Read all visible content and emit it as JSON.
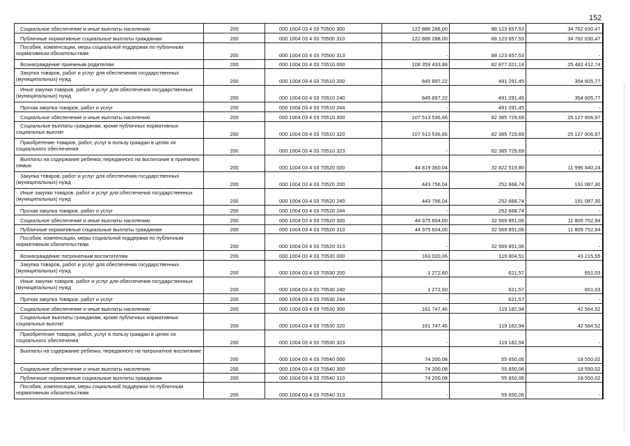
{
  "page_number": "152",
  "rows": [
    {
      "name": "Социальное обеспечение и иные выплаты населению",
      "code": "200",
      "kbk": "000 1004 03 4 03 70500 300",
      "approved": "122 886 288,00",
      "executed": "88 123 657,53",
      "remaining": "34 762 630,47"
    },
    {
      "name": "Публичные нормативные социальные выплаты гражданам",
      "code": "200",
      "kbk": "000 1004 03 4 03 70500 310",
      "approved": "122 886 288,00",
      "executed": "88 123 657,53",
      "remaining": "34 762 630,47"
    },
    {
      "name": "Пособия, компенсации, меры социальной поддержки по публичным нормативным обязательствам",
      "code": "200",
      "kbk": "000 1004 03 4 03 70500 313",
      "approved": "-",
      "executed": "88 123 657,53",
      "remaining": "-"
    },
    {
      "name": "Вознаграждение приемным родителям",
      "code": "200",
      "kbk": "000 1004 03 4 03 70510 000",
      "approved": "108 359 433,88",
      "executed": "82 877 021,14",
      "remaining": "25 482 412,74"
    },
    {
      "name": "Закупка товаров, работ и услуг для обеспечения государственных (муниципальных) нужд",
      "code": "200",
      "kbk": "000 1004 03 4 03 70510 200",
      "approved": "845 897,22",
      "executed": "491 291,45",
      "remaining": "354 605,77"
    },
    {
      "name": "Иные закупки товаров, работ и услуг для обеспечения государственных (муниципальных) нужд",
      "code": "200",
      "kbk": "000 1004 03 4 03 70510 240",
      "approved": "845 897,22",
      "executed": "491 291,45",
      "remaining": "354 605,77"
    },
    {
      "name": "Прочая закупка товаров, работ и услуг",
      "code": "200",
      "kbk": "000 1004 03 4 03 70510 244",
      "approved": "-",
      "executed": "491 291,45",
      "remaining": "-"
    },
    {
      "name": "Социальное обеспечение и иные выплаты населению",
      "code": "200",
      "kbk": "000 1004 03 4 03 70510 300",
      "approved": "107 513 536,66",
      "executed": "82 385 729,69",
      "remaining": "25 127 806,97"
    },
    {
      "name": "Социальные выплаты гражданам, кроме публичных нормативных социальных выплат",
      "code": "200",
      "kbk": "000 1004 03 4 03 70510 320",
      "approved": "107 513 536,66",
      "executed": "82 385 729,69",
      "remaining": "25 127 806,97"
    },
    {
      "name": "Приобретение товаров, работ, услуг в пользу граждан в целях их социального обеспечения",
      "code": "200",
      "kbk": "000 1004 03 4 03 70510 323",
      "approved": "-",
      "executed": "82 385 729,69",
      "remaining": "-"
    },
    {
      "name": "Выплаты на содержание ребенка, переданного на воспитание в приемную семью",
      "code": "200",
      "kbk": "000 1004 03 4 03 70520 000",
      "approved": "44 819 360,04",
      "executed": "32 822 519,80",
      "remaining": "11 996 840,24"
    },
    {
      "name": "Закупка товаров, работ и услуг для обеспечения государственных (муниципальных) нужд",
      "code": "200",
      "kbk": "000 1004 03 4 03 70520 200",
      "approved": "443 756,04",
      "executed": "252 668,74",
      "remaining": "191 087,30"
    },
    {
      "name": "Иные закупки товаров, работ и услуг для обеспечения государственных (муниципальных) нужд",
      "code": "200",
      "kbk": "000 1004 03 4 03 70520 240",
      "approved": "443 756,04",
      "executed": "252 668,74",
      "remaining": "191 087,30"
    },
    {
      "name": "Прочая закупка товаров, работ и услуг",
      "code": "200",
      "kbk": "000 1004 03 4 03 70520 244",
      "approved": "-",
      "executed": "252 668,74",
      "remaining": "-"
    },
    {
      "name": "Социальное обеспечение и иные выплаты населению",
      "code": "200",
      "kbk": "000 1004 03 4 03 70520 300",
      "approved": "44 375 604,00",
      "executed": "32 569 851,06",
      "remaining": "11 805 752,94"
    },
    {
      "name": "Публичные нормативные социальные выплаты гражданам",
      "code": "200",
      "kbk": "000 1004 03 4 03 70520 310",
      "approved": "44 375 604,00",
      "executed": "32 569 851,06",
      "remaining": "11 805 752,94"
    },
    {
      "name": "Пособия, компенсации, меры социальной поддержки по публичным нормативным обязательствам",
      "code": "200",
      "kbk": "000 1004 03 4 03 70520 313",
      "approved": "-",
      "executed": "32 569 851,06",
      "remaining": "-"
    },
    {
      "name": "Вознаграждение патронатным воспитателям",
      "code": "200",
      "kbk": "000 1004 03 4 03 70530 000",
      "approved": "163 020,06",
      "executed": "119 804,51",
      "remaining": "43 215,55"
    },
    {
      "name": "Закупка товаров, работ и услуг для обеспечения государственных (муниципальных) нужд",
      "code": "200",
      "kbk": "000 1004 03 4 03 70530 200",
      "approved": "1 272,60",
      "executed": "621,57",
      "remaining": "651,03"
    },
    {
      "name": "Иные закупки товаров, работ и услуг для обеспечения государственных (муниципальных) нужд",
      "code": "200",
      "kbk": "000 1004 03 4 03 70530 240",
      "approved": "1 272,60",
      "executed": "621,57",
      "remaining": "651,03"
    },
    {
      "name": "Прочая закупка товаров, работ и услуг",
      "code": "200",
      "kbk": "000 1004 03 4 03 70530 244",
      "approved": "-",
      "executed": "621,57",
      "remaining": "-"
    },
    {
      "name": "Социальное обеспечение и иные выплаты населению",
      "code": "200",
      "kbk": "000 1004 03 4 03 70530 300",
      "approved": "161 747,46",
      "executed": "119 182,94",
      "remaining": "42 564,52"
    },
    {
      "name": "Социальные выплаты гражданам, кроме публичных нормативных социальных выплат",
      "code": "200",
      "kbk": "000 1004 03 4 03 70530 320",
      "approved": "161 747,46",
      "executed": "119 182,94",
      "remaining": "42 564,52"
    },
    {
      "name": "Приобретение товаров, работ, услуг в пользу граждан в целях их социального обеспечения",
      "code": "200",
      "kbk": "000 1004 03 4 03 70530 323",
      "approved": "-",
      "executed": "119 182,94",
      "remaining": "-"
    },
    {
      "name": "Выплаты на содержание ребенка, переданного на патронатное воспитание",
      "code": "200",
      "kbk": "000 1004 03 4 03 70540 000",
      "approved": "74 200,08",
      "executed": "55 650,06",
      "remaining": "18 550,02"
    },
    {
      "name": "Социальное обеспечение и иные выплаты населению",
      "code": "200",
      "kbk": "000 1004 03 4 03 70540 300",
      "approved": "74 200,08",
      "executed": "55 650,06",
      "remaining": "18 550,02"
    },
    {
      "name": "Публичные нормативные социальные выплаты гражданам",
      "code": "200",
      "kbk": "000 1004 03 4 03 70540 310",
      "approved": "74 200,08",
      "executed": "55 650,06",
      "remaining": "18 550,02"
    },
    {
      "name": "Пособия, компенсации, меры социальной поддержки по публичным нормативным обязательствам",
      "code": "200",
      "kbk": "000 1004 03 4 03 70540 313",
      "approved": "-",
      "executed": "55 650,06",
      "remaining": "-"
    }
  ]
}
